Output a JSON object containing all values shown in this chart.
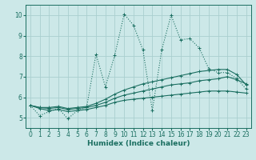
{
  "xlabel": "Humidex (Indice chaleur)",
  "bg_color": "#cce8e8",
  "grid_color": "#aacfcf",
  "line_color": "#1a6e60",
  "xlim": [
    -0.5,
    23.5
  ],
  "ylim": [
    4.5,
    10.5
  ],
  "xticks": [
    0,
    1,
    2,
    3,
    4,
    5,
    6,
    7,
    8,
    9,
    10,
    11,
    12,
    13,
    14,
    15,
    16,
    17,
    18,
    19,
    20,
    21,
    22,
    23
  ],
  "yticks": [
    5,
    6,
    7,
    8,
    9,
    10
  ],
  "main_line": {
    "x": [
      0,
      1,
      2,
      3,
      4,
      5,
      6,
      7,
      8,
      9,
      10,
      11,
      12,
      13,
      14,
      15,
      16,
      17,
      18,
      19,
      20,
      21,
      22,
      23
    ],
    "y": [
      5.6,
      5.1,
      5.3,
      5.45,
      4.95,
      5.35,
      5.5,
      8.1,
      6.5,
      8.05,
      10.05,
      9.5,
      8.3,
      5.35,
      8.3,
      10.0,
      8.8,
      8.85,
      8.4,
      7.4,
      7.2,
      7.2,
      6.9,
      6.4
    ]
  },
  "smooth_lines": [
    {
      "x": [
        0,
        1,
        2,
        3,
        4,
        5,
        6,
        7,
        8,
        9,
        10,
        11,
        12,
        13,
        14,
        15,
        16,
        17,
        18,
        19,
        20,
        21,
        22,
        23
      ],
      "y": [
        5.6,
        5.45,
        5.35,
        5.4,
        5.3,
        5.35,
        5.4,
        5.5,
        5.6,
        5.75,
        5.85,
        5.9,
        5.95,
        6.0,
        6.05,
        6.1,
        6.15,
        6.2,
        6.25,
        6.3,
        6.3,
        6.3,
        6.25,
        6.2
      ]
    },
    {
      "x": [
        0,
        1,
        2,
        3,
        4,
        5,
        6,
        7,
        8,
        9,
        10,
        11,
        12,
        13,
        14,
        15,
        16,
        17,
        18,
        19,
        20,
        21,
        22,
        23
      ],
      "y": [
        5.6,
        5.5,
        5.45,
        5.5,
        5.4,
        5.45,
        5.5,
        5.6,
        5.75,
        5.95,
        6.1,
        6.2,
        6.3,
        6.4,
        6.5,
        6.6,
        6.65,
        6.7,
        6.8,
        6.85,
        6.9,
        7.0,
        6.85,
        6.65
      ]
    },
    {
      "x": [
        0,
        1,
        2,
        3,
        4,
        5,
        6,
        7,
        8,
        9,
        10,
        11,
        12,
        13,
        14,
        15,
        16,
        17,
        18,
        19,
        20,
        21,
        22,
        23
      ],
      "y": [
        5.6,
        5.5,
        5.5,
        5.55,
        5.45,
        5.5,
        5.55,
        5.7,
        5.9,
        6.15,
        6.35,
        6.5,
        6.65,
        6.75,
        6.85,
        6.95,
        7.05,
        7.15,
        7.25,
        7.3,
        7.35,
        7.35,
        7.1,
        6.6
      ]
    }
  ]
}
